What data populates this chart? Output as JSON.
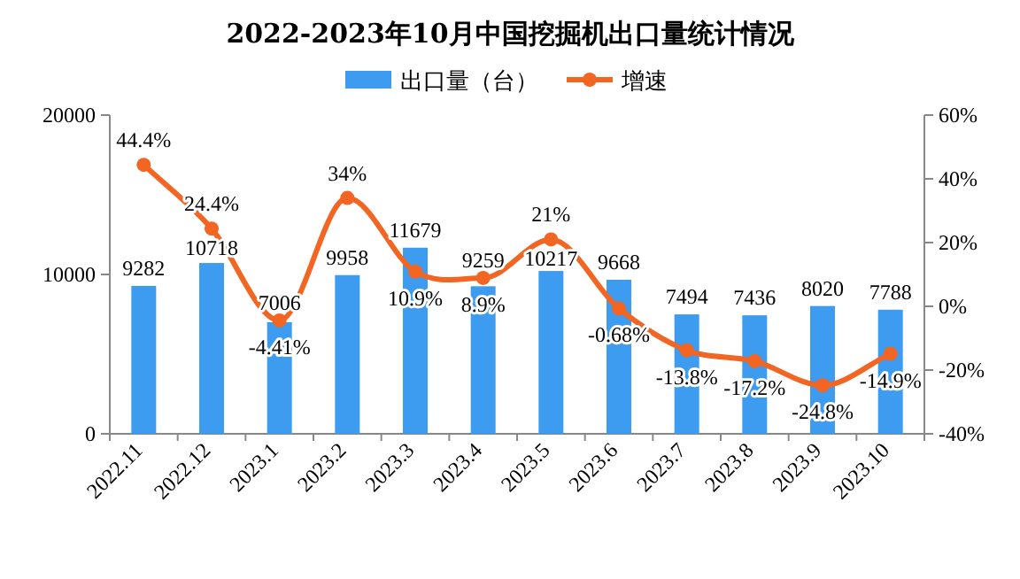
{
  "chart_data": {
    "type": "bar",
    "title": "2022-2023年10月中国挖掘机出口量统计情况",
    "categories": [
      "2022.11",
      "2022.12",
      "2023.1",
      "2023.2",
      "2023.3",
      "2023.4",
      "2023.5",
      "2023.6",
      "2023.7",
      "2023.8",
      "2023.9",
      "2023.10"
    ],
    "series": [
      {
        "name": "出口量（台）",
        "type": "bar",
        "color": "#3d9cf0",
        "values": [
          9282,
          10718,
          7006,
          9958,
          11679,
          9259,
          10217,
          9668,
          7494,
          7436,
          8020,
          7788
        ],
        "value_labels": [
          "9282",
          "10718",
          "7006",
          "9958",
          "11679",
          "9259",
          "10217",
          "9668",
          "7494",
          "7436",
          "8020",
          "7788"
        ]
      },
      {
        "name": "增速",
        "type": "line",
        "axis": "y2",
        "color": "#f26522",
        "marker": "circle",
        "values": [
          44.4,
          24.4,
          -4.41,
          34,
          10.9,
          8.9,
          21,
          -0.68,
          -13.8,
          -17.2,
          -24.8,
          -14.9
        ],
        "value_labels": [
          "44.4%",
          "24.4%",
          "-4.41%",
          "34%",
          "10.9%",
          "8.9%",
          "21%",
          "-0.68%",
          "-13.8%",
          "-17.2%",
          "-24.8%",
          "-14.9%"
        ]
      }
    ],
    "ylim": [
      0,
      20000
    ],
    "yticks": [
      0,
      10000,
      20000
    ],
    "y2lim": [
      -40,
      60
    ],
    "y2ticks": [
      {
        "value": -40,
        "label": "-40%"
      },
      {
        "value": -20,
        "label": "-20%"
      },
      {
        "value": 0,
        "label": "0%"
      },
      {
        "value": 20,
        "label": "20%"
      },
      {
        "value": 40,
        "label": "40%"
      },
      {
        "value": 60,
        "label": "60%"
      }
    ],
    "legend": "top",
    "grid": false
  }
}
